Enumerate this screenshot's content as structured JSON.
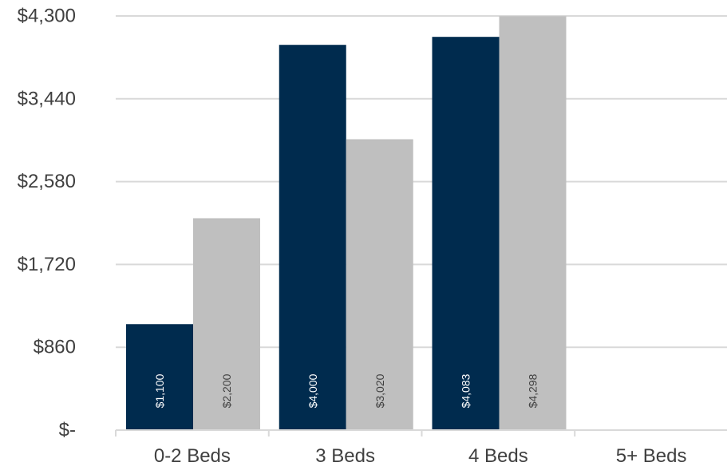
{
  "chart_data": {
    "type": "bar",
    "title": "",
    "xlabel": "",
    "ylabel": "",
    "categories": [
      "0-2 Beds",
      "3 Beds",
      "4 Beds",
      "5+ Beds"
    ],
    "series": [
      {
        "color": "#002b4e",
        "label_color": "#ffffff",
        "values": [
          1100,
          4000,
          4083,
          null
        ],
        "labels": [
          "$1,100",
          "$4,000",
          "$4,083",
          ""
        ]
      },
      {
        "color": "#bfbfbf",
        "label_color": "#404040",
        "values": [
          2200,
          3020,
          4298,
          null
        ],
        "labels": [
          "$2,200",
          "$3,020",
          "$4,298",
          ""
        ]
      }
    ],
    "ylim": [
      0,
      4300
    ],
    "yticks": [
      0,
      860,
      1720,
      2580,
      3440,
      4300
    ],
    "ytick_labels": [
      "$-",
      "$860",
      "$1,720",
      "$2,580",
      "$3,440",
      "$4,300"
    ],
    "grid": true,
    "legend": "none",
    "data_label_orientation": "vertical"
  }
}
